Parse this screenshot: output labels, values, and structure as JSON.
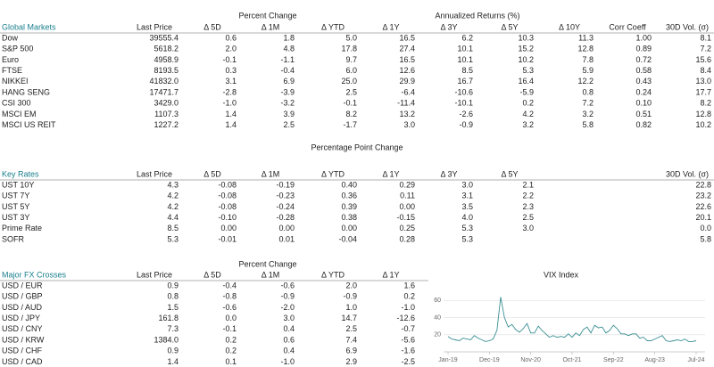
{
  "sections": [
    {
      "title": "Global Markets",
      "group_headers": [
        "Percent Change",
        "Annualized Returns (%)"
      ],
      "columns": [
        "Last Price",
        "Δ 5D",
        "Δ 1M",
        "Δ YTD",
        "Δ 1Y",
        "Δ 3Y",
        "Δ 5Y",
        "Δ 10Y",
        "Corr Coeff",
        "30D Vol. (σ)"
      ],
      "rows": [
        {
          "label": "Dow",
          "values": [
            "39555.4",
            "0.6",
            "1.8",
            "5.0",
            "16.5",
            "6.2",
            "10.3",
            "11.3",
            "1.00",
            "8.1"
          ]
        },
        {
          "label": "S&P 500",
          "values": [
            "5618.2",
            "2.0",
            "4.8",
            "17.8",
            "27.4",
            "10.1",
            "15.2",
            "12.8",
            "0.89",
            "7.2"
          ]
        },
        {
          "label": "Euro",
          "values": [
            "4958.9",
            "-0.1",
            "-1.1",
            "9.7",
            "16.5",
            "10.1",
            "10.2",
            "7.8",
            "0.72",
            "15.6"
          ]
        },
        {
          "label": "FTSE",
          "values": [
            "8193.5",
            "0.3",
            "-0.4",
            "6.0",
            "12.6",
            "8.5",
            "5.3",
            "5.9",
            "0.58",
            "8.4"
          ]
        },
        {
          "label": "NIKKEI",
          "values": [
            "41832.0",
            "3.1",
            "6.9",
            "25.0",
            "29.9",
            "16.7",
            "16.4",
            "12.2",
            "0.43",
            "13.0"
          ]
        },
        {
          "label": "HANG SENG",
          "values": [
            "17471.7",
            "-2.8",
            "-3.9",
            "2.5",
            "-6.4",
            "-10.6",
            "-5.9",
            "0.8",
            "0.24",
            "17.7"
          ]
        },
        {
          "label": "CSI 300",
          "values": [
            "3429.0",
            "-1.0",
            "-3.2",
            "-0.1",
            "-11.4",
            "-10.1",
            "0.2",
            "7.2",
            "0.10",
            "8.2"
          ]
        },
        {
          "label": "MSCI EM",
          "values": [
            "1107.3",
            "1.4",
            "3.9",
            "8.2",
            "13.2",
            "-2.6",
            "4.2",
            "3.2",
            "0.51",
            "12.8"
          ]
        },
        {
          "label": "MSCI US REIT",
          "values": [
            "1227.2",
            "1.4",
            "2.5",
            "-1.7",
            "3.0",
            "-0.9",
            "3.2",
            "5.8",
            "0.82",
            "10.2"
          ]
        }
      ]
    },
    {
      "title": "Key Rates",
      "group_headers": [
        "Percentage Point Change"
      ],
      "columns": [
        "Last Price",
        "Δ 5D",
        "Δ 1M",
        "Δ YTD",
        "Δ 1Y",
        "Δ 3Y",
        "Δ 5Y",
        "30D Vol. (σ)"
      ],
      "rows": [
        {
          "label": "UST 10Y",
          "values": [
            "4.3",
            "-0.08",
            "-0.19",
            "0.40",
            "0.29",
            "3.0",
            "2.1",
            "22.8"
          ]
        },
        {
          "label": "UST 7Y",
          "values": [
            "4.2",
            "-0.08",
            "-0.23",
            "0.36",
            "0.11",
            "3.1",
            "2.2",
            "23.2"
          ]
        },
        {
          "label": "UST 5Y",
          "values": [
            "4.2",
            "-0.08",
            "-0.24",
            "0.39",
            "0.00",
            "3.5",
            "2.3",
            "22.6"
          ]
        },
        {
          "label": "UST 3Y",
          "values": [
            "4.4",
            "-0.10",
            "-0.28",
            "0.38",
            "-0.15",
            "4.0",
            "2.5",
            "20.1"
          ]
        },
        {
          "label": "Prime Rate",
          "values": [
            "8.5",
            "0.00",
            "0.00",
            "0.00",
            "0.25",
            "5.3",
            "3.0",
            "0.0"
          ]
        },
        {
          "label": "SOFR",
          "values": [
            "5.3",
            "-0.01",
            "0.01",
            "-0.04",
            "0.28",
            "5.3",
            null,
            "5.8"
          ]
        }
      ]
    },
    {
      "title": "Major FX Crosses",
      "group_headers": [
        "Percent Change"
      ],
      "columns": [
        "Last Price",
        "Δ 5D",
        "Δ 1M",
        "Δ YTD",
        "Δ 1Y"
      ],
      "rows": [
        {
          "label": "USD / EUR",
          "values": [
            "0.9",
            "-0.4",
            "-0.6",
            "2.0",
            "1.6"
          ]
        },
        {
          "label": "USD / GBP",
          "values": [
            "0.8",
            "-0.8",
            "-0.9",
            "-0.9",
            "0.2"
          ]
        },
        {
          "label": "USD / AUD",
          "values": [
            "1.5",
            "-0.6",
            "-2.0",
            "1.0",
            "-1.0"
          ]
        },
        {
          "label": "USD / JPY",
          "values": [
            "161.8",
            "0.0",
            "3.0",
            "14.7",
            "-12.6"
          ]
        },
        {
          "label": "USD / CNY",
          "values": [
            "7.3",
            "-0.1",
            "0.4",
            "2.5",
            "-0.7"
          ]
        },
        {
          "label": "USD / KRW",
          "values": [
            "1384.0",
            "0.2",
            "0.6",
            "7.4",
            "-5.6"
          ]
        },
        {
          "label": "USD / CHF",
          "values": [
            "0.9",
            "0.2",
            "0.4",
            "6.9",
            "-1.6"
          ]
        },
        {
          "label": "USD / CAD",
          "values": [
            "1.4",
            "0.1",
            "-1.0",
            "2.9",
            "-2.5"
          ]
        }
      ]
    }
  ],
  "chart_data": {
    "type": "line",
    "title": "VIX Index",
    "color": "#3a8f94",
    "grid": true,
    "x": [
      "Jan-19",
      "Feb-19",
      "Mar-19",
      "Apr-19",
      "May-19",
      "Jun-19",
      "Jul-19",
      "Aug-19",
      "Sep-19",
      "Oct-19",
      "Nov-19",
      "Dec-19",
      "Jan-20",
      "Feb-20",
      "Mar-20",
      "Apr-20",
      "May-20",
      "Jun-20",
      "Jul-20",
      "Aug-20",
      "Sep-20",
      "Oct-20",
      "Nov-20",
      "Dec-20",
      "Jan-21",
      "Feb-21",
      "Mar-21",
      "Apr-21",
      "May-21",
      "Jun-21",
      "Jul-21",
      "Aug-21",
      "Sep-21",
      "Oct-21",
      "Nov-21",
      "Dec-21",
      "Jan-22",
      "Feb-22",
      "Mar-22",
      "Apr-22",
      "May-22",
      "Jun-22",
      "Jul-22",
      "Aug-22",
      "Sep-22",
      "Oct-22",
      "Nov-22",
      "Dec-22",
      "Jan-23",
      "Feb-23",
      "Mar-23",
      "Apr-23",
      "May-23",
      "Jun-23",
      "Jul-23",
      "Aug-23",
      "Sep-23",
      "Oct-23",
      "Nov-23",
      "Dec-23",
      "Jan-24",
      "Feb-24",
      "Mar-24",
      "Apr-24",
      "May-24",
      "Jun-24",
      "Jul-24"
    ],
    "values": [
      18,
      15,
      14,
      13,
      16,
      15,
      14,
      19,
      16,
      14,
      12,
      13,
      15,
      25,
      64,
      40,
      29,
      32,
      26,
      23,
      27,
      33,
      22,
      22,
      30,
      25,
      21,
      17,
      19,
      17,
      18,
      17,
      21,
      17,
      22,
      19,
      26,
      29,
      22,
      31,
      28,
      29,
      22,
      25,
      31,
      27,
      21,
      21,
      19,
      21,
      21,
      16,
      17,
      13,
      13,
      15,
      17,
      19,
      13,
      12,
      13,
      14,
      13,
      15,
      12,
      12,
      13
    ],
    "xticks": [
      "Jan-19",
      "Dec-19",
      "Nov-20",
      "Oct-21",
      "Sep-22",
      "Aug-23",
      "Jul-24"
    ],
    "ylim": [
      0,
      80
    ],
    "yticks": [
      20,
      40,
      60
    ]
  }
}
